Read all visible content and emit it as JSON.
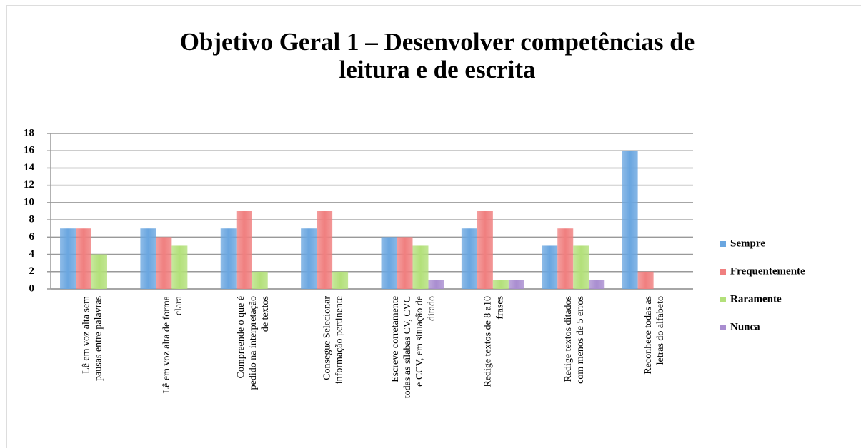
{
  "chart_data": {
    "type": "bar",
    "title": "Objetivo Geral 1 – Desenvolver competências de leitura e de escrita",
    "categories": [
      "Lê em voz alta sem pausas entre palavras",
      "Lê em voz alta de forma clara",
      "Compreende o que é pedido na interpretação de textos",
      "Consegue Selecionar informação pertinente",
      "Escreve corretamente todas as sílabas CV, CVC e CCV, em situação de ditado",
      "Redige textos de 8 a10 frases",
      "Redige textos ditados com menos de 5 erros",
      "Reconhece todas as letras do alfabeto"
    ],
    "series": [
      {
        "name": "Sempre",
        "color": "#6aa6e0",
        "values": [
          7,
          7,
          7,
          7,
          6,
          7,
          5,
          16
        ]
      },
      {
        "name": "Frequentemente",
        "color": "#f07f7f",
        "values": [
          7,
          6,
          9,
          9,
          6,
          9,
          7,
          2
        ]
      },
      {
        "name": "Raramente",
        "color": "#b3e07a",
        "values": [
          4,
          5,
          2,
          2,
          5,
          1,
          5,
          0
        ]
      },
      {
        "name": "Nunca",
        "color": "#a98dd0",
        "values": [
          0,
          0,
          0,
          0,
          1,
          1,
          1,
          0
        ]
      }
    ],
    "ylim": [
      0,
      18
    ],
    "yticks": [
      0,
      2,
      4,
      6,
      8,
      10,
      12,
      14,
      16,
      18
    ],
    "grid": true,
    "legend": "right"
  }
}
